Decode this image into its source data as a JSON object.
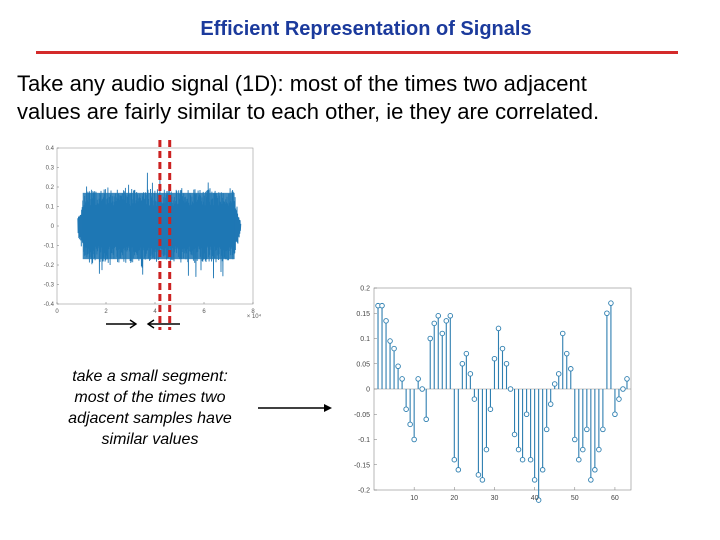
{
  "slide": {
    "title": "Efficient Representation of Signals",
    "intro_lines": [
      "Take any audio signal (1D): most of the times two adjacent",
      "values are fairly similar to each other, ie they are correlated."
    ],
    "caption_lines": [
      "take a small segment:",
      "most of the times two",
      "adjacent samples have",
      "similar values"
    ],
    "colors": {
      "title": "#1b3a9c",
      "rule": "#d42a2a",
      "signal": "#1f77b4",
      "segment_marker": "#cc2222",
      "stem": "#2e7fb0"
    }
  },
  "chart_data": [
    {
      "type": "line",
      "title": "",
      "xlabel": "",
      "ylabel": "",
      "xlim": [
        0,
        8
      ],
      "ylim": [
        -0.4,
        0.4
      ],
      "x_ticks": [
        "0",
        "2",
        "4",
        "6",
        "8"
      ],
      "x_exponent": "× 10⁴",
      "y_ticks": [
        "0.4",
        "0.3",
        "0.2",
        "0.1",
        "0",
        "-0.1",
        "-0.2",
        "-0.3",
        "-0.4"
      ],
      "grid": false,
      "segment_markers_x": [
        4.2,
        4.6
      ]
    },
    {
      "type": "scatter",
      "title": "",
      "xlabel": "",
      "ylabel": "",
      "xlim": [
        0,
        64
      ],
      "ylim": [
        -0.2,
        0.2
      ],
      "x_ticks": [
        "10",
        "20",
        "30",
        "40",
        "50",
        "60"
      ],
      "y_ticks": [
        "0.2",
        "0.15",
        "0.1",
        "0.05",
        "0",
        "-0.05",
        "-0.1",
        "-0.15",
        "-0.2"
      ],
      "grid": false,
      "x": [
        1,
        2,
        3,
        4,
        5,
        6,
        7,
        8,
        9,
        10,
        11,
        12,
        13,
        14,
        15,
        16,
        17,
        18,
        19,
        20,
        21,
        22,
        23,
        24,
        25,
        26,
        27,
        28,
        29,
        30,
        31,
        32,
        33,
        34,
        35,
        36,
        37,
        38,
        39,
        40,
        41,
        42,
        43,
        44,
        45,
        46,
        47,
        48,
        49,
        50,
        51,
        52,
        53,
        54,
        55,
        56,
        57,
        58,
        59,
        60,
        61,
        62,
        63
      ],
      "values": [
        0.165,
        0.165,
        0.135,
        0.095,
        0.08,
        0.045,
        0.02,
        -0.04,
        -0.07,
        -0.1,
        0.02,
        0.0,
        -0.06,
        0.1,
        0.13,
        0.145,
        0.11,
        0.135,
        0.145,
        -0.14,
        -0.16,
        0.05,
        0.07,
        0.03,
        -0.02,
        -0.17,
        -0.18,
        -0.12,
        -0.04,
        0.06,
        0.12,
        0.08,
        0.05,
        0.0,
        -0.09,
        -0.12,
        -0.14,
        -0.05,
        -0.14,
        -0.18,
        -0.22,
        -0.16,
        -0.08,
        -0.03,
        0.01,
        0.03,
        0.11,
        0.07,
        0.04,
        -0.1,
        -0.14,
        -0.12,
        -0.08,
        -0.18,
        -0.16,
        -0.12,
        -0.08,
        0.15,
        0.17,
        -0.05,
        -0.02,
        0.0,
        0.02
      ]
    }
  ]
}
